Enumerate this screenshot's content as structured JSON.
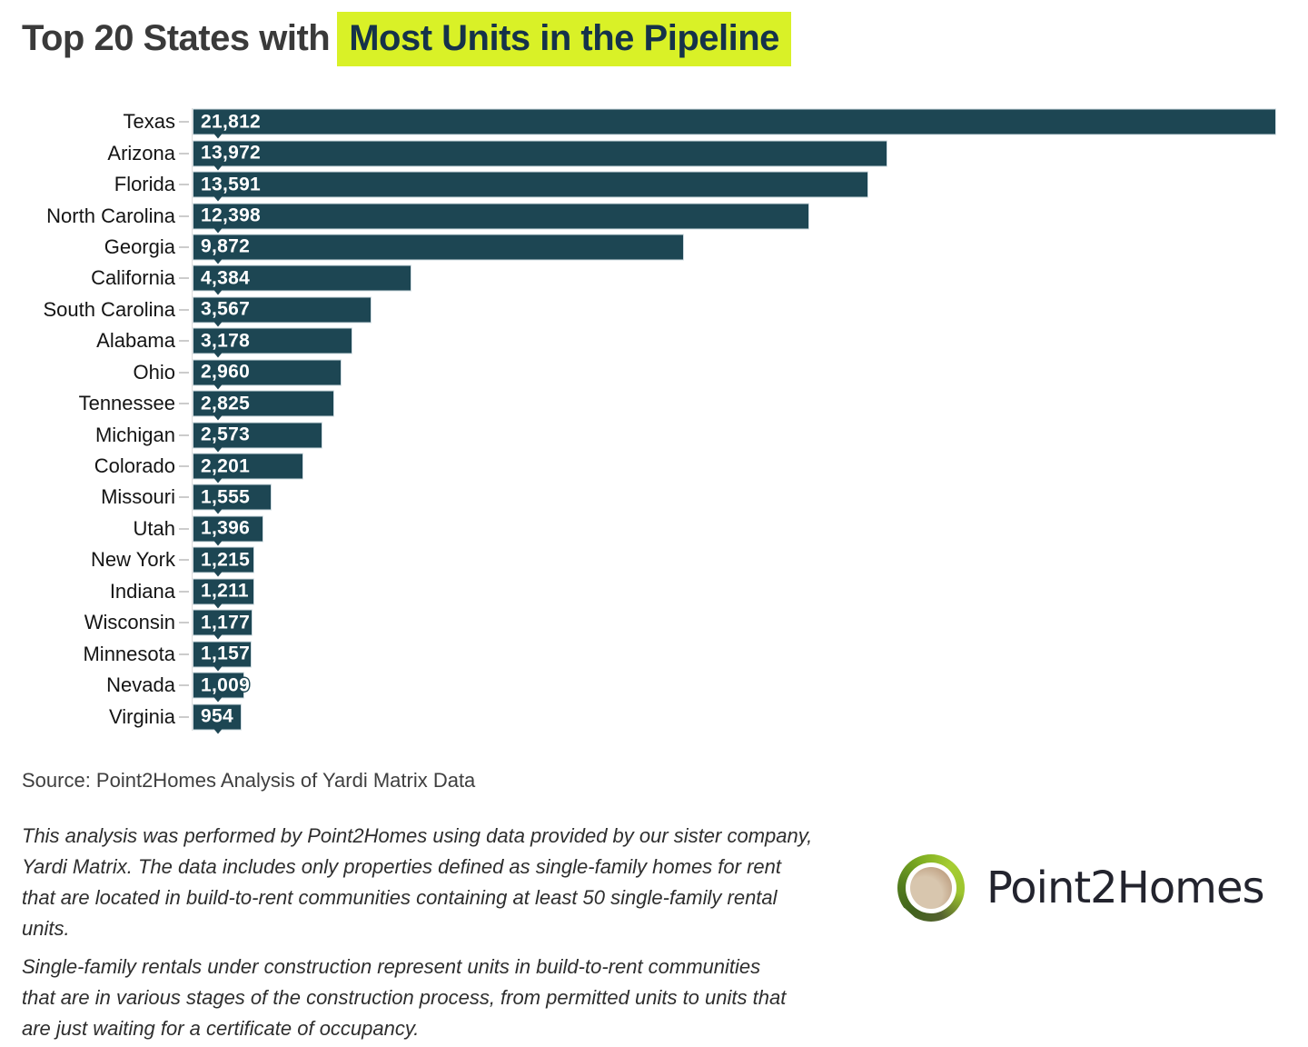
{
  "title": {
    "prefix": "Top 20 States with",
    "highlight": "Most Units in the Pipeline"
  },
  "chart_data": {
    "type": "bar",
    "orientation": "horizontal",
    "title": "Top 20 States with Most Units in the Pipeline",
    "xlabel": "",
    "ylabel": "",
    "grid": false,
    "legend": false,
    "xlim": [
      0,
      21812
    ],
    "categories": [
      "Texas",
      "Arizona",
      "Florida",
      "North Carolina",
      "Georgia",
      "California",
      "South Carolina",
      "Alabama",
      "Ohio",
      "Tennessee",
      "Michigan",
      "Colorado",
      "Missouri",
      "Utah",
      "New York",
      "Indiana",
      "Wisconsin",
      "Minnesota",
      "Nevada",
      "Virginia"
    ],
    "values": [
      21812,
      13972,
      13591,
      12398,
      9872,
      4384,
      3567,
      3178,
      2960,
      2825,
      2573,
      2201,
      1555,
      1396,
      1215,
      1211,
      1177,
      1157,
      1009,
      954
    ],
    "value_labels": [
      "21,812",
      "13,972",
      "13,591",
      "12,398",
      "9,872",
      "4,384",
      "3,567",
      "3,178",
      "2,960",
      "2,825",
      "2,573",
      "2,201",
      "1,555",
      "1,396",
      "1,215",
      "1,211",
      "1,177",
      "1,157",
      "1,009",
      "954"
    ]
  },
  "footer": {
    "source": "Source: Point2Homes Analysis of Yardi Matrix Data",
    "note1_lines": [
      "This analysis was performed by Point2Homes using data provided by our sister company,",
      "Yardi Matrix. The data includes only properties defined as single-family homes for rent",
      "that are located in build-to-rent communities containing at least 50 single-family rental",
      "units."
    ],
    "note2_lines": [
      "Single-family rentals under construction represent units in build-to-rent communities",
      "that are in various stages of the construction process, from permitted units to units that",
      "are just waiting for a certificate of occupancy."
    ]
  },
  "logo": {
    "text": "Point2Homes"
  },
  "colors": {
    "bar": "#1d4653",
    "highlight_bg": "#d9f127",
    "highlight_text": "#15324a",
    "title_text": "#3a3a3a",
    "axis_line": "#dcdcdc",
    "tick": "#cccccc"
  }
}
